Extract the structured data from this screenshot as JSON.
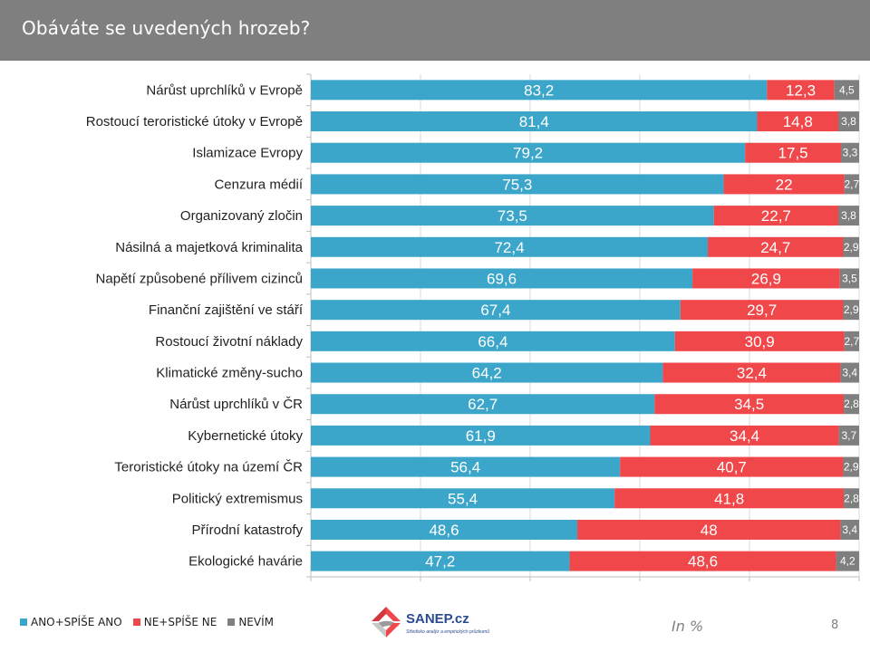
{
  "header": {
    "title": "Obáváte se uvedených  hrozeb?"
  },
  "footer": {
    "unit_note": "In %",
    "page_number": "8",
    "logo_name": "SANEP.cz",
    "logo_tagline": "Středisko analýz a empirických průzkumů"
  },
  "colors": {
    "header_bg": "#7f7f7f",
    "ano": "#3ba6c9",
    "ne": "#f0474a",
    "nevim": "#7f7f7f"
  },
  "chart_data": {
    "type": "bar",
    "orientation": "horizontal",
    "stacked": true,
    "title": "Obáváte se uvedených  hrozeb?",
    "categories": [
      "Nárůst uprchlíků v Evropě",
      "Rostoucí teroristické útoky v Evropě",
      "Islamizace Evropy",
      "Cenzura médií",
      "Organizovaný zločin",
      "Násilná a majetková kriminalita",
      "Napětí způsobené přílivem cizinců",
      "Finanční zajištění ve stáří",
      "Rostoucí životní náklady",
      "Klimatické změny-sucho",
      "Nárůst uprchlíků v ČR",
      "Kybernetické útoky",
      "Teroristické útoky na území ČR",
      "Politický extremismus",
      "Přírodní katastrofy",
      "Ekologické havárie"
    ],
    "series": [
      {
        "name": "ANO+SPÍŠE ANO",
        "color": "#3ba6c9",
        "label_color": "#ffffff",
        "values": [
          83.2,
          81.4,
          79.2,
          75.3,
          73.5,
          72.4,
          69.6,
          67.4,
          66.4,
          64.2,
          62.7,
          61.9,
          56.4,
          55.4,
          48.6,
          47.2
        ],
        "labels": [
          "83,2",
          "81,4",
          "79,2",
          "75,3",
          "73,5",
          "72,4",
          "69,6",
          "67,4",
          "66,4",
          "64,2",
          "62,7",
          "61,9",
          "56,4",
          "55,4",
          "48,6",
          "47,2"
        ]
      },
      {
        "name": "NE+SPÍŠE NE",
        "color": "#f0474a",
        "label_color": "#ffffff",
        "values": [
          12.3,
          14.8,
          17.5,
          22,
          22.7,
          24.7,
          26.9,
          29.7,
          30.9,
          32.4,
          34.5,
          34.4,
          40.7,
          41.8,
          48,
          48.6
        ],
        "labels": [
          "12,3",
          "14,8",
          "17,5",
          "22",
          "22,7",
          "24,7",
          "26,9",
          "29,7",
          "30,9",
          "32,4",
          "34,5",
          "34,4",
          "40,7",
          "41,8",
          "48",
          "48,6"
        ]
      },
      {
        "name": "NEVÍM",
        "color": "#7f7f7f",
        "label_color": "#ffffff",
        "values": [
          4.5,
          3.8,
          3.3,
          2.7,
          3.8,
          2.9,
          3.5,
          2.9,
          2.7,
          3.4,
          2.8,
          3.7,
          2.9,
          2.8,
          3.4,
          4.2
        ],
        "labels": [
          "4,5",
          "3,8",
          "3,3",
          "2,7",
          "3,8",
          "2,9",
          "3,5",
          "2,9",
          "2,7",
          "3,4",
          "2,8",
          "3,7",
          "2,9",
          "2,8",
          "3,4",
          "4,2"
        ]
      }
    ],
    "xlim": [
      0,
      100
    ],
    "x_tick_values": [
      0,
      20,
      40,
      60,
      80,
      100
    ],
    "grid": "vertical",
    "legend_position": "bottom-left"
  }
}
